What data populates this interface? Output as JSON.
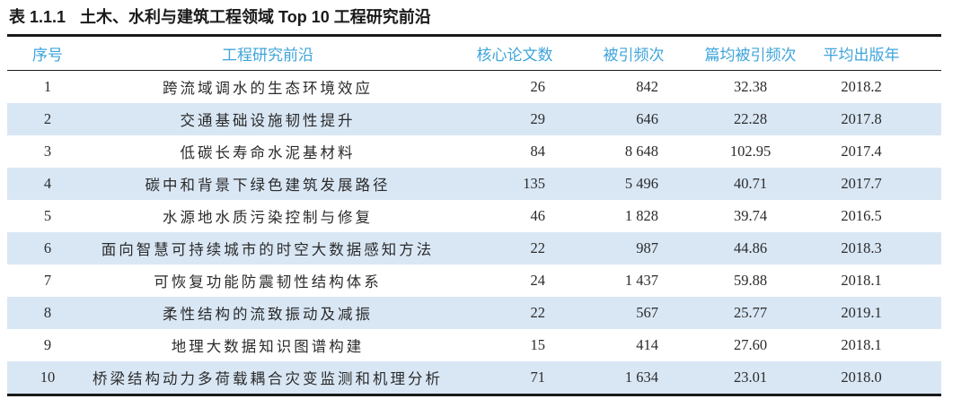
{
  "table": {
    "caption_label": "表 1.1.1",
    "caption_text": "土木、水利与建筑工程领域 Top 10 工程研究前沿",
    "columns": [
      "序号",
      "工程研究前沿",
      "核心论文数",
      "被引频次",
      "篇均被引频次",
      "平均出版年"
    ],
    "rows": [
      {
        "rank": "1",
        "frontier": "跨流域调水的生态环境效应",
        "papers": "26",
        "citations": "842",
        "cites_per_paper": "32.38",
        "mean_pub_year": "2018.2"
      },
      {
        "rank": "2",
        "frontier": "交通基础设施韧性提升",
        "papers": "29",
        "citations": "646",
        "cites_per_paper": "22.28",
        "mean_pub_year": "2017.8"
      },
      {
        "rank": "3",
        "frontier": "低碳长寿命水泥基材料",
        "papers": "84",
        "citations": "8 648",
        "cites_per_paper": "102.95",
        "mean_pub_year": "2017.4"
      },
      {
        "rank": "4",
        "frontier": "碳中和背景下绿色建筑发展路径",
        "papers": "135",
        "citations": "5 496",
        "cites_per_paper": "40.71",
        "mean_pub_year": "2017.7"
      },
      {
        "rank": "5",
        "frontier": "水源地水质污染控制与修复",
        "papers": "46",
        "citations": "1 828",
        "cites_per_paper": "39.74",
        "mean_pub_year": "2016.5"
      },
      {
        "rank": "6",
        "frontier": "面向智慧可持续城市的时空大数据感知方法",
        "papers": "22",
        "citations": "987",
        "cites_per_paper": "44.86",
        "mean_pub_year": "2018.3"
      },
      {
        "rank": "7",
        "frontier": "可恢复功能防震韧性结构体系",
        "papers": "24",
        "citations": "1 437",
        "cites_per_paper": "59.88",
        "mean_pub_year": "2018.1"
      },
      {
        "rank": "8",
        "frontier": "柔性结构的流致振动及减振",
        "papers": "22",
        "citations": "567",
        "cites_per_paper": "25.77",
        "mean_pub_year": "2019.1"
      },
      {
        "rank": "9",
        "frontier": "地理大数据知识图谱构建",
        "papers": "15",
        "citations": "414",
        "cites_per_paper": "27.60",
        "mean_pub_year": "2018.1"
      },
      {
        "rank": "10",
        "frontier": "桥梁结构动力多荷载耦合灾变监测和机理分析",
        "papers": "71",
        "citations": "1 634",
        "cites_per_paper": "23.01",
        "mean_pub_year": "2018.0"
      }
    ]
  },
  "colors": {
    "header_text": "#3ea4db",
    "stripe": "#d9e7f5",
    "rule": "#1a1a1a",
    "body_text": "#2b2b2b"
  },
  "chart_data": {
    "type": "table",
    "title": "表 1.1.1 土木、水利与建筑工程领域 Top 10 工程研究前沿",
    "columns": [
      "序号",
      "工程研究前沿",
      "核心论文数",
      "被引频次",
      "篇均被引频次",
      "平均出版年"
    ],
    "core_papers": [
      26,
      29,
      84,
      135,
      46,
      22,
      24,
      22,
      15,
      71
    ],
    "citations": [
      842,
      646,
      8648,
      5496,
      1828,
      987,
      1437,
      567,
      414,
      1634
    ],
    "citations_per_paper": [
      32.38,
      22.28,
      102.95,
      40.71,
      39.74,
      44.86,
      59.88,
      25.77,
      27.6,
      23.01
    ],
    "mean_publication_year": [
      2018.2,
      2017.8,
      2017.4,
      2017.7,
      2016.5,
      2018.3,
      2018.1,
      2019.1,
      2018.1,
      2018.0
    ]
  }
}
